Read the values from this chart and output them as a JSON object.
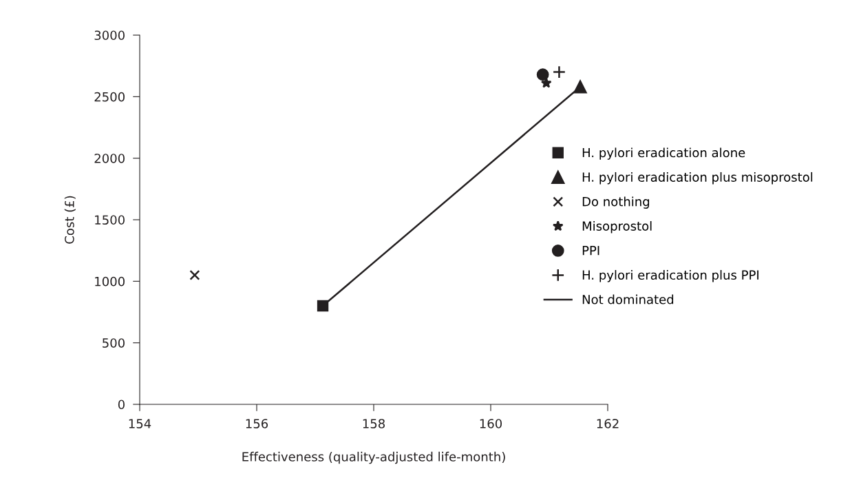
{
  "chart_data": {
    "type": "scatter",
    "xlabel": "Effectiveness (quality-adjusted life-month)",
    "ylabel": "Cost (£)",
    "xlim": [
      154,
      162
    ],
    "xticks": [
      154,
      156,
      158,
      160,
      162
    ],
    "ylim": [
      0,
      3000
    ],
    "yticks": [
      0,
      500,
      1000,
      1500,
      2000,
      2500,
      3000
    ],
    "grid": false,
    "legend": "right",
    "series": [
      {
        "name": "H. pylori eradication alone",
        "color": "#231f20",
        "marker": "square",
        "x": [
          157.13
        ],
        "values": [
          800
        ]
      },
      {
        "name": "H. pylori eradication plus misoprostol",
        "color": "#231f20",
        "marker": "triangle",
        "x": [
          161.53
        ],
        "values": [
          2580
        ]
      },
      {
        "name": "Do nothing",
        "color": "#231f20",
        "marker": "cross",
        "x": [
          154.94
        ],
        "values": [
          1050
        ]
      },
      {
        "name": "Misoprostol",
        "color": "#231f20",
        "marker": "star",
        "x": [
          160.95
        ],
        "values": [
          2610
        ]
      },
      {
        "name": "PPI",
        "color": "#231f20",
        "marker": "circle",
        "x": [
          160.89
        ],
        "values": [
          2680
        ]
      },
      {
        "name": "H. pylori eradication plus PPI",
        "color": "#231f20",
        "marker": "plus",
        "x": [
          161.17
        ],
        "values": [
          2700
        ]
      },
      {
        "name": "Not dominated",
        "type": "line",
        "color": "#231f20",
        "marker": "none",
        "line_style": "solid",
        "x": [
          157.13,
          161.53
        ],
        "values": [
          800,
          2580
        ]
      }
    ]
  }
}
